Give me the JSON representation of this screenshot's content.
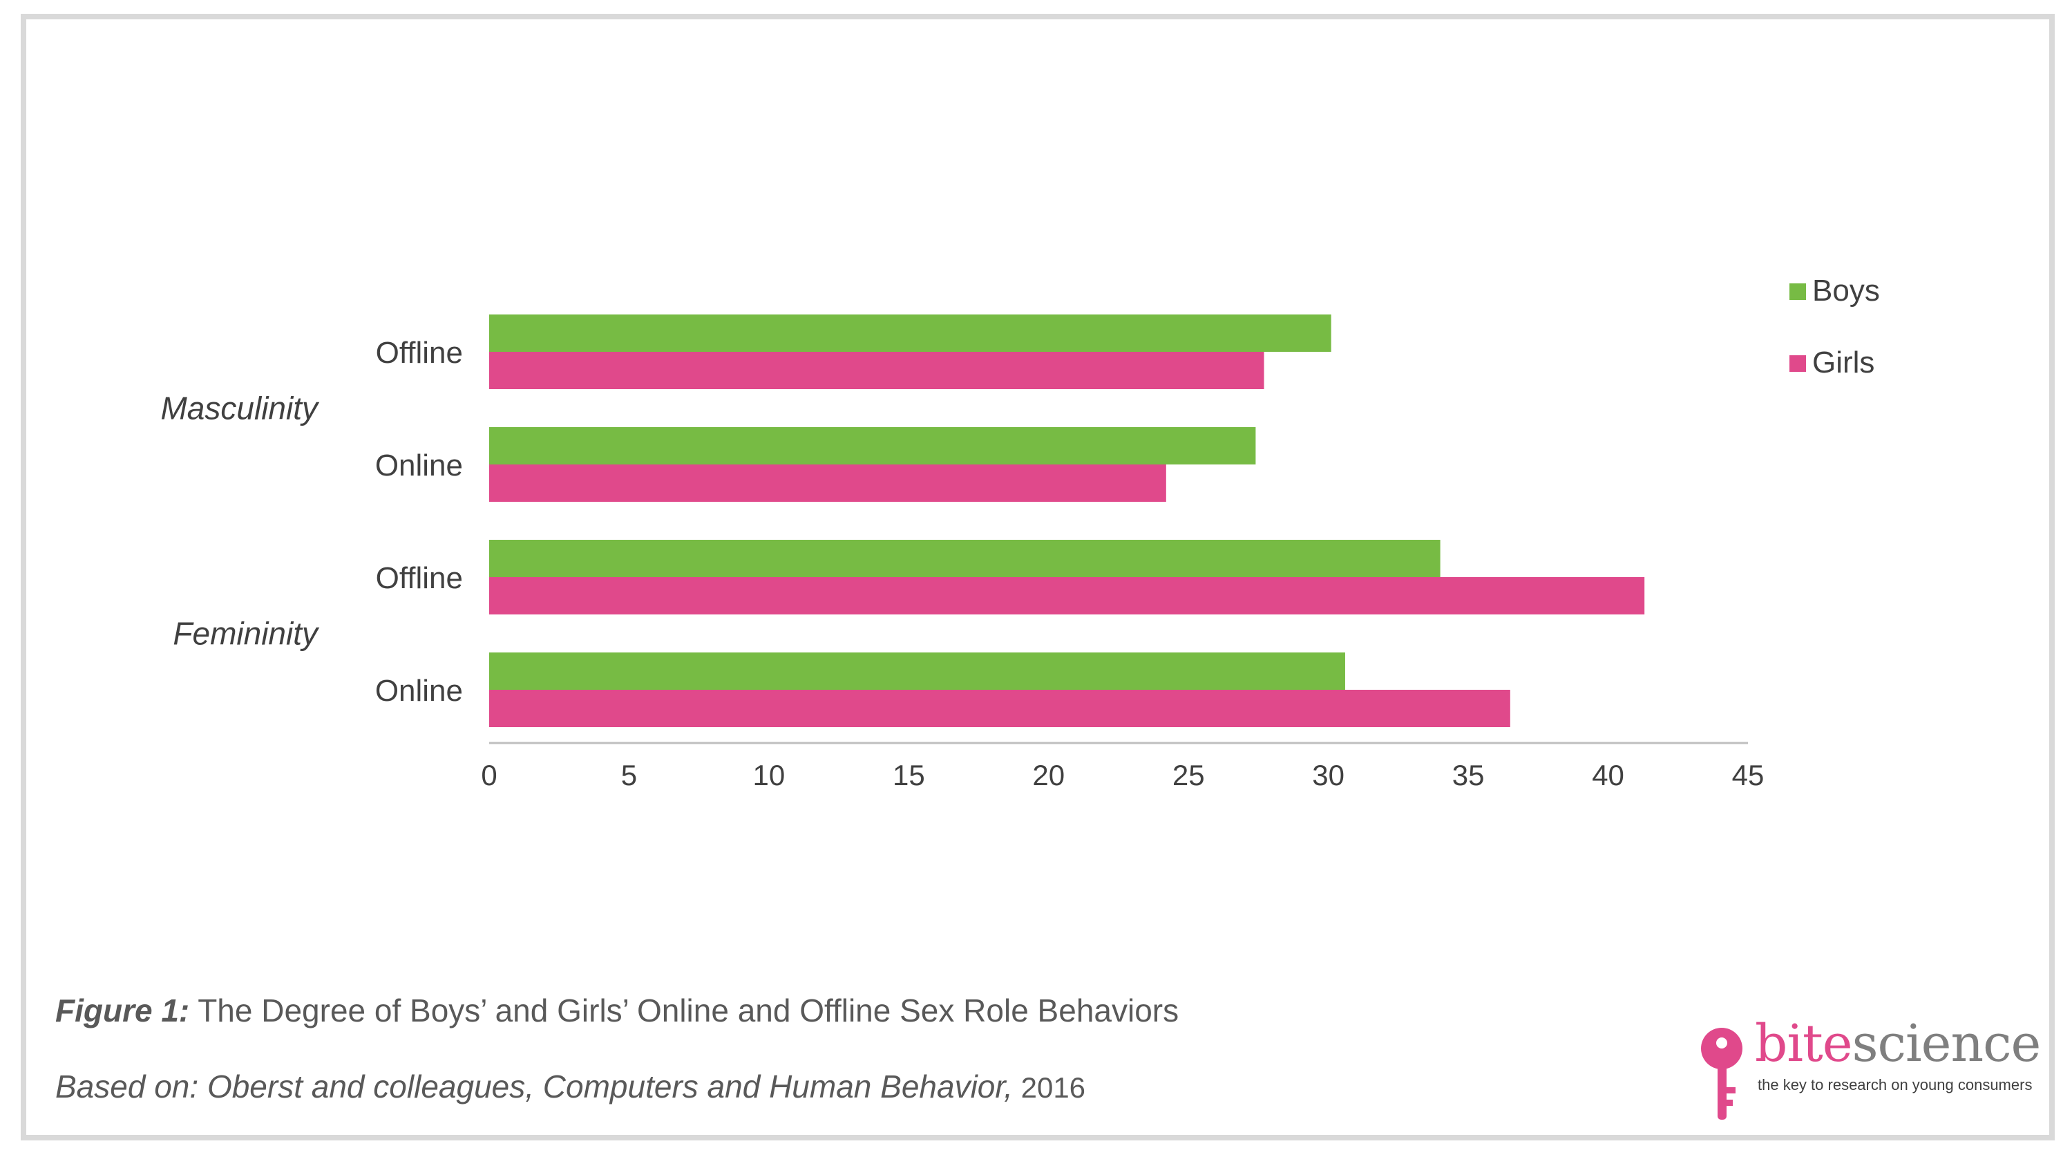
{
  "chart_data": {
    "type": "bar",
    "orientation": "horizontal",
    "groups": [
      {
        "label": "Masculinity",
        "categories": [
          "Offline",
          "Online"
        ]
      },
      {
        "label": "Femininity",
        "categories": [
          "Offline",
          "Online"
        ]
      }
    ],
    "series": [
      {
        "name": "Boys",
        "color": "#77bb44",
        "values": [
          30.1,
          27.4,
          34,
          30.6
        ]
      },
      {
        "name": "Girls",
        "color": "#e0498b",
        "values": [
          27.7,
          24.2,
          41.3,
          36.5
        ]
      }
    ],
    "xlim": [
      0,
      45
    ],
    "xticks": [
      0,
      5,
      10,
      15,
      20,
      25,
      30,
      35,
      40,
      45
    ],
    "legend_position": "top-right",
    "grid": false
  },
  "caption": {
    "figure_label": "Figure 1:",
    "figure_title": " The Degree of Boys’ and Girls’ Online and Offline Sex Role Behaviors",
    "source_prefix": "Based on: Oberst and colleagues, Computers and Human Behavior,",
    "source_year": " 2016"
  },
  "logo": {
    "word_part1": "bite",
    "word_part2": "science",
    "tagline": "the key to research on young consumers",
    "icon": "key-icon"
  }
}
